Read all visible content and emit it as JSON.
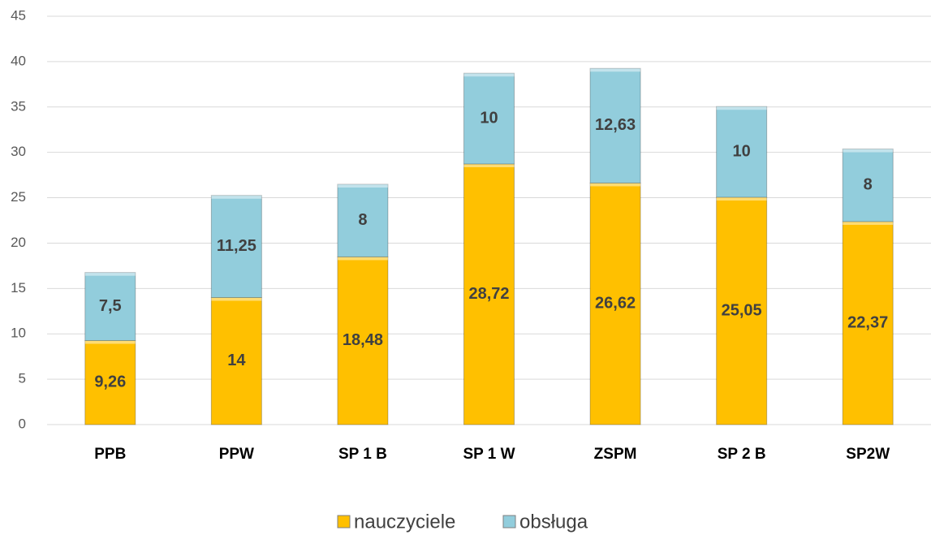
{
  "chart_data": {
    "type": "stacked_bar",
    "categories": [
      "PPB",
      "PPW",
      "SP 1 B",
      "SP 1 W",
      "ZSPM",
      "SP 2 B",
      "SP2W"
    ],
    "series": [
      {
        "name": "nauczyciele",
        "color": "#ffc000",
        "values": [
          9.26,
          14,
          18.48,
          28.72,
          26.62,
          25.05,
          22.37
        ],
        "value_labels": [
          "9,26",
          "14",
          "18,48",
          "28,72",
          "26,62",
          "25,05",
          "22,37"
        ]
      },
      {
        "name": "obsługa",
        "color": "#92cddc",
        "values": [
          7.5,
          11.25,
          8,
          10,
          12.63,
          10,
          8
        ],
        "value_labels": [
          "7,5",
          "11,25",
          "8",
          "10",
          "12,63",
          "10",
          "8"
        ]
      }
    ],
    "ylim": [
      0,
      45
    ],
    "yticks": [
      0,
      5,
      10,
      15,
      20,
      25,
      30,
      35,
      40,
      45
    ],
    "grid": true,
    "legend": "bottom"
  }
}
